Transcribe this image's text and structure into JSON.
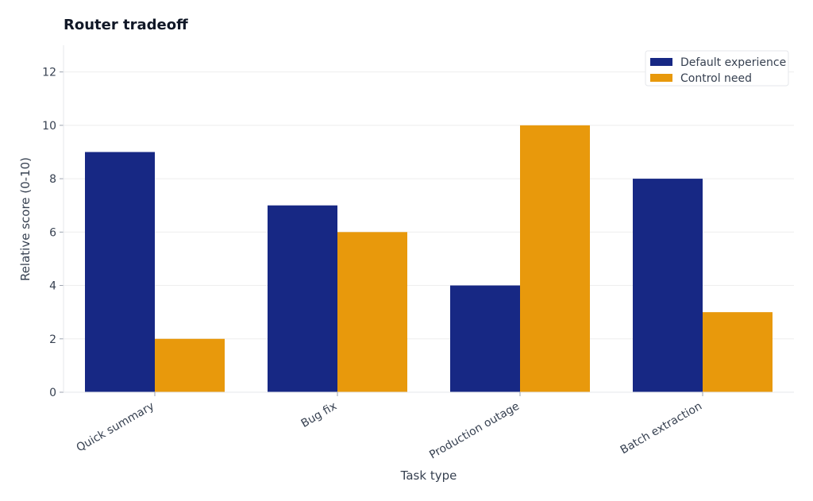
{
  "chart_data": {
    "type": "bar",
    "title": "Router tradeoff",
    "xlabel": "Task type",
    "ylabel": "Relative score (0-10)",
    "categories": [
      "Quick summary",
      "Bug fix",
      "Production outage",
      "Batch extraction"
    ],
    "series": [
      {
        "name": "Default experience",
        "values": [
          9,
          7,
          4,
          8
        ],
        "color": "#172884"
      },
      {
        "name": "Control need",
        "values": [
          2,
          6,
          10,
          3
        ],
        "color": "#e8990c"
      }
    ],
    "ylim": [
      0,
      13
    ],
    "yticks": [
      0,
      2,
      4,
      6,
      8,
      10,
      12
    ],
    "grid": "horizontal",
    "legend_position": "top-right",
    "colors": {
      "grid": "#eeeeee",
      "axis": "#e5e7eb",
      "text": "#374151",
      "title": "#111827"
    }
  }
}
